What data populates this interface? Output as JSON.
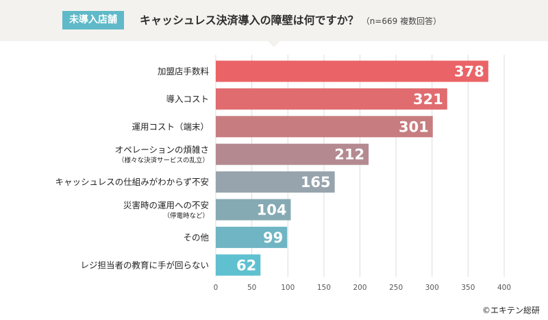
{
  "header": {
    "badge": "未導入店舗",
    "title": "キャッシュレス決済導入の障壁は何ですか？",
    "note": "（n=669 複数回答）"
  },
  "footer": {
    "credit": "©エキテン総研"
  },
  "chart_data": {
    "type": "bar",
    "orientation": "horizontal",
    "title": "キャッシュレス決済導入の障壁は何ですか？",
    "subtitle": "（n=669 複数回答）",
    "xlim": [
      0,
      400
    ],
    "xticks": [
      0,
      50,
      100,
      150,
      200,
      250,
      300,
      350,
      400
    ],
    "grid": true,
    "categories": [
      {
        "label": "加盟店手数料",
        "sub": "",
        "value": 378,
        "color": "#ea6467"
      },
      {
        "label": "導入コスト",
        "sub": "",
        "value": 321,
        "color": "#e06c70"
      },
      {
        "label": "運用コスト（端末）",
        "sub": "",
        "value": 301,
        "color": "#c77d80"
      },
      {
        "label": "オペレーションの煩雑さ",
        "sub": "（様々な決済サービスの乱立）",
        "value": 212,
        "color": "#b48a90"
      },
      {
        "label": "キャッシュレスの仕組みがわからず不安",
        "sub": "",
        "value": 165,
        "color": "#97a4ad"
      },
      {
        "label": "災害時の運用への不安",
        "sub": "（停電時など）",
        "value": 104,
        "color": "#86aab3"
      },
      {
        "label": "その他",
        "sub": "",
        "value": 99,
        "color": "#6fb5c3"
      },
      {
        "label": "レジ担当者の教育に手が回らない",
        "sub": "",
        "value": 62,
        "color": "#5fc0d0"
      }
    ]
  }
}
